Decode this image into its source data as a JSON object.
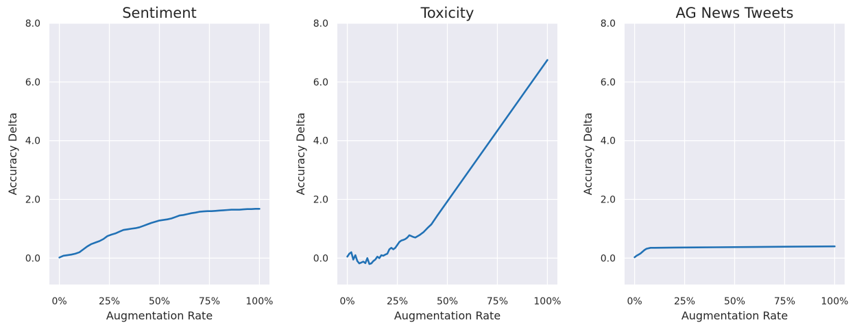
{
  "chart_data": [
    {
      "type": "line",
      "title": "Sentiment",
      "xlabel": "Augmentation Rate",
      "ylabel": "Accuracy Delta",
      "xlim": [
        -0.05,
        1.05
      ],
      "ylim": [
        -0.9,
        8.0
      ],
      "x_ticks": [
        0,
        0.25,
        0.5,
        0.75,
        1.0
      ],
      "x_tick_labels": [
        "0%",
        "25%",
        "50%",
        "75%",
        "100%"
      ],
      "y_ticks": [
        0,
        2,
        4,
        6,
        8
      ],
      "y_tick_labels": [
        "0.0",
        "2.0",
        "4.0",
        "6.0",
        "8.0"
      ],
      "grid": true,
      "color": "#2171b5",
      "series": [
        {
          "x": [
            0,
            0.02,
            0.04,
            0.06,
            0.08,
            0.1,
            0.12,
            0.14,
            0.16,
            0.18,
            0.2,
            0.22,
            0.24,
            0.26,
            0.28,
            0.3,
            0.32,
            0.34,
            0.36,
            0.38,
            0.4,
            0.42,
            0.44,
            0.46,
            0.48,
            0.5,
            0.52,
            0.54,
            0.56,
            0.58,
            0.6,
            0.62,
            0.64,
            0.66,
            0.68,
            0.7,
            0.72,
            0.74,
            0.76,
            0.78,
            0.8,
            0.82,
            0.84,
            0.86,
            0.88,
            0.9,
            0.92,
            0.94,
            0.96,
            0.98,
            1.0
          ],
          "y": [
            0.02,
            0.08,
            0.1,
            0.12,
            0.15,
            0.2,
            0.3,
            0.4,
            0.48,
            0.53,
            0.58,
            0.65,
            0.75,
            0.8,
            0.84,
            0.9,
            0.96,
            0.98,
            1.0,
            1.02,
            1.05,
            1.1,
            1.15,
            1.2,
            1.24,
            1.28,
            1.3,
            1.32,
            1.35,
            1.4,
            1.45,
            1.47,
            1.5,
            1.53,
            1.55,
            1.58,
            1.59,
            1.6,
            1.6,
            1.61,
            1.62,
            1.63,
            1.64,
            1.65,
            1.65,
            1.65,
            1.66,
            1.67,
            1.67,
            1.68,
            1.68
          ]
        }
      ]
    },
    {
      "type": "line",
      "title": "Toxicity",
      "xlabel": "Augmentation Rate",
      "ylabel": "Accuracy Delta",
      "xlim": [
        -0.05,
        1.05
      ],
      "ylim": [
        -0.9,
        8.0
      ],
      "x_ticks": [
        0,
        0.25,
        0.5,
        0.75,
        1.0
      ],
      "x_tick_labels": [
        "0%",
        "25%",
        "50%",
        "75%",
        "100%"
      ],
      "y_ticks": [
        0,
        2,
        4,
        6,
        8
      ],
      "y_tick_labels": [
        "0.0",
        "2.0",
        "4.0",
        "6.0",
        "8.0"
      ],
      "grid": true,
      "color": "#2171b5",
      "series": [
        {
          "x": [
            0,
            0.01,
            0.02,
            0.03,
            0.04,
            0.05,
            0.06,
            0.07,
            0.08,
            0.09,
            0.1,
            0.11,
            0.12,
            0.13,
            0.14,
            0.15,
            0.16,
            0.17,
            0.18,
            0.19,
            0.2,
            0.21,
            0.22,
            0.23,
            0.24,
            0.25,
            0.26,
            0.27,
            0.28,
            0.29,
            0.3,
            0.31,
            0.32,
            0.33,
            0.34,
            0.36,
            0.38,
            0.4,
            0.42,
            0.45,
            1.0
          ],
          "y": [
            0.05,
            0.15,
            0.2,
            -0.05,
            0.1,
            -0.1,
            -0.18,
            -0.15,
            -0.12,
            -0.17,
            0.0,
            -0.2,
            -0.18,
            -0.1,
            -0.05,
            0.05,
            0.0,
            0.1,
            0.08,
            0.12,
            0.15,
            0.3,
            0.35,
            0.3,
            0.35,
            0.45,
            0.55,
            0.6,
            0.62,
            0.65,
            0.7,
            0.78,
            0.75,
            0.72,
            0.7,
            0.78,
            0.88,
            1.02,
            1.15,
            1.45,
            6.75
          ]
        }
      ]
    },
    {
      "type": "line",
      "title": "AG News Tweets",
      "xlabel": "Augmentation Rate",
      "ylabel": "Accuracy Delta",
      "xlim": [
        -0.05,
        1.05
      ],
      "ylim": [
        -0.9,
        8.0
      ],
      "x_ticks": [
        0,
        0.25,
        0.5,
        0.75,
        1.0
      ],
      "x_tick_labels": [
        "0%",
        "25%",
        "50%",
        "75%",
        "100%"
      ],
      "y_ticks": [
        0,
        2,
        4,
        6,
        8
      ],
      "y_tick_labels": [
        "0.0",
        "2.0",
        "4.0",
        "6.0",
        "8.0"
      ],
      "grid": true,
      "color": "#2171b5",
      "series": [
        {
          "x": [
            0,
            0.01,
            0.02,
            0.03,
            0.04,
            0.05,
            0.06,
            0.08,
            0.1,
            0.2,
            0.4,
            0.6,
            0.8,
            1.0
          ],
          "y": [
            0.03,
            0.08,
            0.12,
            0.16,
            0.22,
            0.28,
            0.32,
            0.35,
            0.35,
            0.36,
            0.37,
            0.38,
            0.39,
            0.4
          ]
        }
      ]
    }
  ]
}
